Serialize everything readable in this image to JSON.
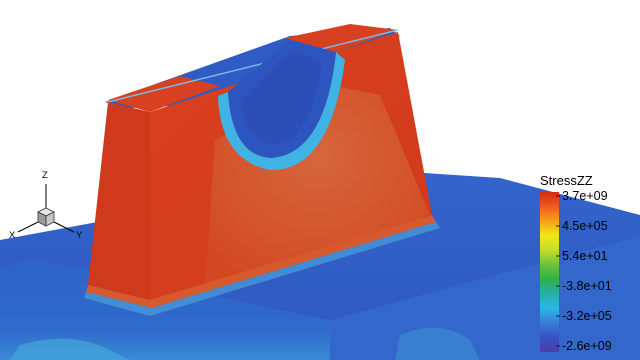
{
  "legend": {
    "title": "StressZZ",
    "ticks": [
      "3.7e+09",
      "4.5e+05",
      "5.4e+01",
      "-3.8e+01",
      "-3.2e+05",
      "-2.6e+09"
    ],
    "colors": [
      "#d62a12",
      "#f05a1e",
      "#f6a11c",
      "#f3e61a",
      "#c4dc2a",
      "#6cc23a",
      "#2fb24a",
      "#24b0a8",
      "#29b6e6",
      "#3a7dd6",
      "#3651c0",
      "#4b3fa6"
    ]
  },
  "triad": {
    "x": "X",
    "y": "Y",
    "z": "Z"
  },
  "palette": {
    "red": "#d43a1e",
    "red_light": "#e0502a",
    "orange_band": "#cf6a3a",
    "blue": "#2f5cc6",
    "blue_dark": "#2a4fb8",
    "cyan": "#3fb3e4"
  }
}
